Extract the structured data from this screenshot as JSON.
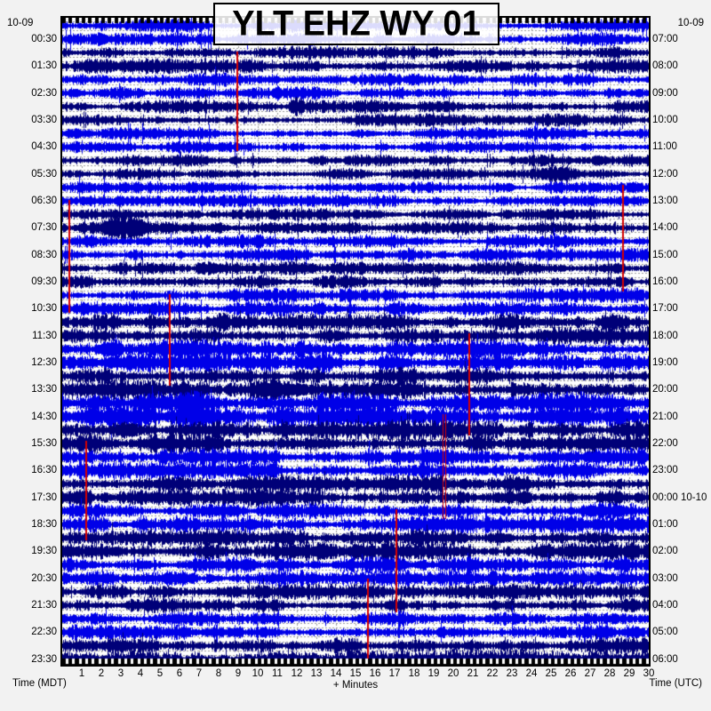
{
  "title": "YLT EHZ WY 01",
  "corner_dates": {
    "top_left": "10-09",
    "top_right": "10-09"
  },
  "captions": {
    "bottom_left": "Time (MDT)",
    "bottom_center": "+ Minutes",
    "bottom_right": "Time (UTC)"
  },
  "chart_data": {
    "type": "line",
    "subtype": "helicorder-seismogram",
    "title": "YLT EHZ WY 01",
    "xlabel": "+ Minutes",
    "x_range_minutes": [
      0,
      30
    ],
    "minute_tick_labels": [
      "1",
      "2",
      "3",
      "4",
      "5",
      "6",
      "7",
      "8",
      "9",
      "10",
      "11",
      "12",
      "13",
      "14",
      "15",
      "16",
      "17",
      "18",
      "19",
      "20",
      "21",
      "22",
      "23",
      "24",
      "25",
      "26",
      "27",
      "28",
      "29",
      "30"
    ],
    "left_axis_caption": "Time (MDT)",
    "right_axis_caption": "Time (UTC)",
    "left_axis_labels": [
      "00:30",
      "01:30",
      "02:30",
      "03:30",
      "04:30",
      "05:30",
      "06:30",
      "07:30",
      "08:30",
      "09:30",
      "10:30",
      "11:30",
      "12:30",
      "13:30",
      "14:30",
      "15:30",
      "16:30",
      "17:30",
      "18:30",
      "19:30",
      "20:30",
      "21:30",
      "22:30",
      "23:30"
    ],
    "right_axis_labels": [
      "07:00",
      "08:00",
      "09:00",
      "10:00",
      "11:00",
      "12:00",
      "13:00",
      "14:00",
      "15:00",
      "16:00",
      "17:00",
      "18:00",
      "19:00",
      "20:00",
      "21:00",
      "22:00",
      "23:00",
      "00:00 10-10",
      "01:00",
      "02:00",
      "03:00",
      "04:00",
      "05:00",
      "06:00"
    ],
    "grid": {
      "vertical_every_minutes": 1,
      "horizontal_dotted": true,
      "color": "#9A9A9A"
    },
    "palette": {
      "blue": "#0000E8",
      "navy": "#000078",
      "marker_red": "#D40000",
      "border": "#000000",
      "background": "#F2F2F2"
    },
    "rows": [
      {
        "t": "00:00",
        "c": "blue",
        "a": 4.0,
        "b": []
      },
      {
        "t": "00:30",
        "c": "blue",
        "a": 4.0,
        "b": []
      },
      {
        "t": "01:00",
        "c": "navy",
        "a": 4.0,
        "b": []
      },
      {
        "t": "01:30",
        "c": "navy",
        "a": 4.5,
        "b": []
      },
      {
        "t": "02:00",
        "c": "blue",
        "a": 4.0,
        "b": []
      },
      {
        "t": "02:30",
        "c": "blue",
        "a": 4.0,
        "b": []
      },
      {
        "t": "03:00",
        "c": "navy",
        "a": 4.0,
        "b": [
          [
            11.4,
            12.4,
            4.0
          ]
        ]
      },
      {
        "t": "03:30",
        "c": "navy",
        "a": 4.0,
        "b": []
      },
      {
        "t": "04:00",
        "c": "blue",
        "a": 3.6,
        "b": []
      },
      {
        "t": "04:30",
        "c": "blue",
        "a": 3.6,
        "b": []
      },
      {
        "t": "05:00",
        "c": "navy",
        "a": 3.5,
        "b": []
      },
      {
        "t": "05:30",
        "c": "navy",
        "a": 3.5,
        "b": [
          [
            24.0,
            26.8,
            3.5
          ]
        ]
      },
      {
        "t": "06:00",
        "c": "blue",
        "a": 3.5,
        "b": []
      },
      {
        "t": "06:30",
        "c": "blue",
        "a": 3.6,
        "b": []
      },
      {
        "t": "07:00",
        "c": "navy",
        "a": 3.6,
        "b": []
      },
      {
        "t": "07:30",
        "c": "navy",
        "a": 4.0,
        "b": [
          [
            1.8,
            4.6,
            6.0
          ],
          [
            7.3,
            8.4,
            2.5
          ]
        ]
      },
      {
        "t": "08:00",
        "c": "blue",
        "a": 4.0,
        "b": []
      },
      {
        "t": "08:30",
        "c": "blue",
        "a": 4.0,
        "b": []
      },
      {
        "t": "09:00",
        "c": "navy",
        "a": 4.0,
        "b": []
      },
      {
        "t": "09:30",
        "c": "navy",
        "a": 4.0,
        "b": []
      },
      {
        "t": "10:00",
        "c": "blue",
        "a": 4.4,
        "b": []
      },
      {
        "t": "10:30",
        "c": "blue",
        "a": 4.5,
        "b": []
      },
      {
        "t": "11:00",
        "c": "navy",
        "a": 5.0,
        "b": [
          [
            7.5,
            8.5,
            2.0
          ]
        ]
      },
      {
        "t": "11:30",
        "c": "navy",
        "a": 5.5,
        "b": []
      },
      {
        "t": "12:00",
        "c": "blue",
        "a": 5.8,
        "b": [
          [
            1.5,
            3.2,
            2.5
          ],
          [
            5.5,
            7.5,
            2.5
          ]
        ]
      },
      {
        "t": "12:30",
        "c": "blue",
        "a": 6.0,
        "b": [
          [
            2.0,
            4.2,
            3.0
          ],
          [
            11.8,
            14.2,
            3.0
          ],
          [
            16.0,
            18.0,
            2.5
          ]
        ]
      },
      {
        "t": "13:00",
        "c": "navy",
        "a": 6.0,
        "b": []
      },
      {
        "t": "13:30",
        "c": "navy",
        "a": 6.5,
        "b": [
          [
            10.4,
            12.6,
            4.0
          ]
        ]
      },
      {
        "t": "14:00",
        "c": "blue",
        "a": 6.5,
        "b": [
          [
            5.5,
            7.2,
            3.0
          ]
        ]
      },
      {
        "t": "14:30",
        "c": "blue",
        "a": 7.5,
        "b": [
          [
            0.0,
            4.0,
            2.5
          ],
          [
            6.0,
            8.2,
            3.0
          ]
        ]
      },
      {
        "t": "15:00",
        "c": "navy",
        "a": 6.0,
        "b": [
          [
            2.5,
            4.2,
            4.0
          ]
        ]
      },
      {
        "t": "15:30",
        "c": "navy",
        "a": 6.2,
        "b": []
      },
      {
        "t": "16:00",
        "c": "blue",
        "a": 5.5,
        "b": []
      },
      {
        "t": "16:30",
        "c": "blue",
        "a": 5.5,
        "b": []
      },
      {
        "t": "17:00",
        "c": "navy",
        "a": 5.5,
        "b": []
      },
      {
        "t": "17:30",
        "c": "navy",
        "a": 5.5,
        "b": [
          [
            22.0,
            24.0,
            2.5
          ]
        ]
      },
      {
        "t": "18:00",
        "c": "blue",
        "a": 5.0,
        "b": []
      },
      {
        "t": "18:30",
        "c": "blue",
        "a": 5.0,
        "b": []
      },
      {
        "t": "19:00",
        "c": "navy",
        "a": 5.2,
        "b": []
      },
      {
        "t": "19:30",
        "c": "navy",
        "a": 5.5,
        "b": []
      },
      {
        "t": "20:00",
        "c": "blue",
        "a": 5.0,
        "b": []
      },
      {
        "t": "20:30",
        "c": "blue",
        "a": 5.0,
        "b": []
      },
      {
        "t": "21:00",
        "c": "navy",
        "a": 4.6,
        "b": []
      },
      {
        "t": "21:30",
        "c": "navy",
        "a": 4.6,
        "b": [
          [
            16.4,
            17.6,
            3.0
          ]
        ]
      },
      {
        "t": "22:00",
        "c": "blue",
        "a": 4.5,
        "b": []
      },
      {
        "t": "22:30",
        "c": "blue",
        "a": 4.5,
        "b": []
      },
      {
        "t": "23:00",
        "c": "navy",
        "a": 5.0,
        "b": []
      },
      {
        "t": "23:30",
        "c": "navy",
        "a": 6.0,
        "b": []
      }
    ],
    "event_markers": [
      {
        "minute": 8.95,
        "from_row": 2.4,
        "to_row": 9.2,
        "double": false
      },
      {
        "minute": 0.36,
        "from_row": 13.4,
        "to_row": 21.2,
        "double": false
      },
      {
        "minute": 28.7,
        "from_row": 12.3,
        "to_row": 19.6,
        "double": false
      },
      {
        "minute": 5.5,
        "from_row": 20.4,
        "to_row": 26.6,
        "double": false
      },
      {
        "minute": 20.8,
        "from_row": 23.3,
        "to_row": 30.3,
        "double": false
      },
      {
        "minute": 19.55,
        "from_row": 29.3,
        "to_row": 36.5,
        "double": true
      },
      {
        "minute": 1.23,
        "from_row": 31.3,
        "to_row": 38.1,
        "double": false
      },
      {
        "minute": 17.1,
        "from_row": 36.4,
        "to_row": 43.4,
        "double": false
      },
      {
        "minute": 15.64,
        "from_row": 41.5,
        "to_row": 47.5,
        "double": false
      }
    ]
  }
}
